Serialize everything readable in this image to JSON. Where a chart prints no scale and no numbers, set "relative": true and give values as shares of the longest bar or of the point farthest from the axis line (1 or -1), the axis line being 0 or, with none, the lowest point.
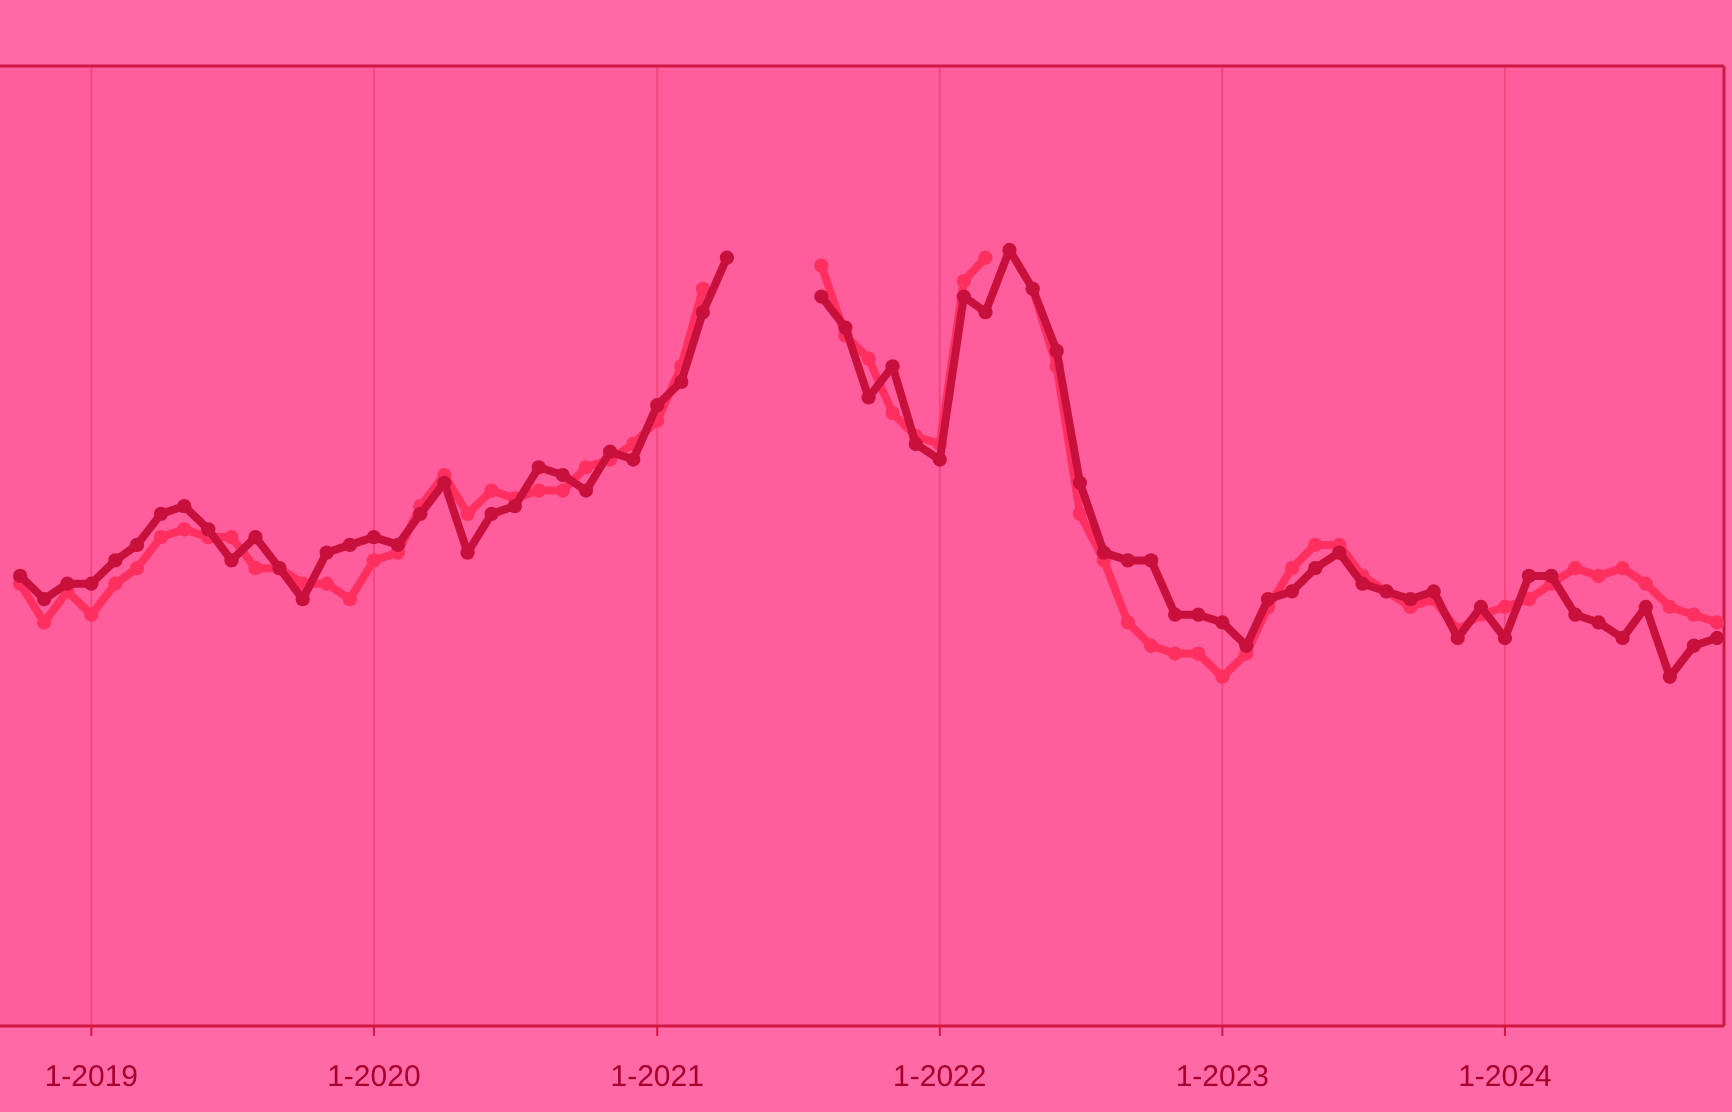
{
  "chart_data": {
    "type": "line",
    "relative": true,
    "marker": "circle",
    "line_style": "solid",
    "grid": "x",
    "x": [
      "2018-10",
      "2018-11",
      "2018-12",
      "2019-01",
      "2019-02",
      "2019-03",
      "2019-04",
      "2019-05",
      "2019-06",
      "2019-07",
      "2019-08",
      "2019-09",
      "2019-10",
      "2019-11",
      "2019-12",
      "2020-01",
      "2020-02",
      "2020-03",
      "2020-04",
      "2020-05",
      "2020-06",
      "2020-07",
      "2020-08",
      "2020-09",
      "2020-10",
      "2020-11",
      "2020-12",
      "2021-01",
      "2021-02",
      "2021-03",
      "2021-04",
      "2021-05",
      "2021-06",
      "2021-07",
      "2021-08",
      "2021-09",
      "2021-10",
      "2021-11",
      "2021-12",
      "2022-01",
      "2022-02",
      "2022-03",
      "2022-04",
      "2022-05",
      "2022-06",
      "2022-07",
      "2022-08",
      "2022-09",
      "2022-10",
      "2022-11",
      "2022-12",
      "2023-01",
      "2023-02",
      "2023-03",
      "2023-04",
      "2023-05",
      "2023-06",
      "2023-07",
      "2023-08",
      "2023-09",
      "2023-10",
      "2023-11",
      "2023-12",
      "2024-01",
      "2024-02",
      "2024-03",
      "2024-04",
      "2024-05",
      "2024-06",
      "2024-07",
      "2024-08",
      "2024-09",
      "2024-10"
    ],
    "xlim": [
      "2018-09-05",
      "2024-10-10"
    ],
    "xticks": [
      {
        "value": "2019-01",
        "label": "1-2019"
      },
      {
        "value": "2020-01",
        "label": "1-2020"
      },
      {
        "value": "2021-01",
        "label": "1-2021"
      },
      {
        "value": "2022-01",
        "label": "1-2022"
      },
      {
        "value": "2023-01",
        "label": "1-2023"
      },
      {
        "value": "2024-01",
        "label": "1-2024"
      }
    ],
    "series": [
      {
        "color": "#ff3060",
        "values": [
          0.57,
          0.52,
          0.56,
          0.53,
          0.57,
          0.59,
          0.63,
          0.64,
          0.63,
          0.63,
          0.59,
          0.59,
          0.57,
          0.57,
          0.55,
          0.6,
          0.61,
          0.67,
          0.71,
          0.66,
          0.69,
          0.68,
          0.69,
          0.69,
          0.72,
          0.73,
          0.75,
          0.78,
          0.85,
          0.95,
          null,
          null,
          null,
          null,
          0.98,
          0.89,
          0.86,
          0.79,
          0.76,
          0.75,
          0.96,
          0.99,
          null,
          0.95,
          0.85,
          0.66,
          0.6,
          0.52,
          0.49,
          0.48,
          0.48,
          0.45,
          0.48,
          0.54,
          0.59,
          0.62,
          0.62,
          0.58,
          0.56,
          0.54,
          0.55,
          0.51,
          0.53,
          0.54,
          0.55,
          0.57,
          0.59,
          0.58,
          0.59,
          0.57,
          0.54,
          0.53,
          0.52
        ]
      },
      {
        "color": "#c8103c",
        "values": [
          0.58,
          0.55,
          0.57,
          0.57,
          0.6,
          0.62,
          0.66,
          0.67,
          0.64,
          0.6,
          0.63,
          0.59,
          0.55,
          0.61,
          0.62,
          0.63,
          0.62,
          0.66,
          0.7,
          0.61,
          0.66,
          0.67,
          0.72,
          0.71,
          0.69,
          0.74,
          0.73,
          0.8,
          0.83,
          0.92,
          0.99,
          null,
          null,
          null,
          0.94,
          0.9,
          0.81,
          0.85,
          0.75,
          0.73,
          0.94,
          0.92,
          1.0,
          0.95,
          0.87,
          0.7,
          0.61,
          0.6,
          0.6,
          0.53,
          0.53,
          0.52,
          0.49,
          0.55,
          0.56,
          0.59,
          0.61,
          0.57,
          0.56,
          0.55,
          0.56,
          0.5,
          0.54,
          0.5,
          0.58,
          0.58,
          0.53,
          0.52,
          0.5,
          0.54,
          0.45,
          0.49,
          0.5
        ]
      }
    ]
  }
}
